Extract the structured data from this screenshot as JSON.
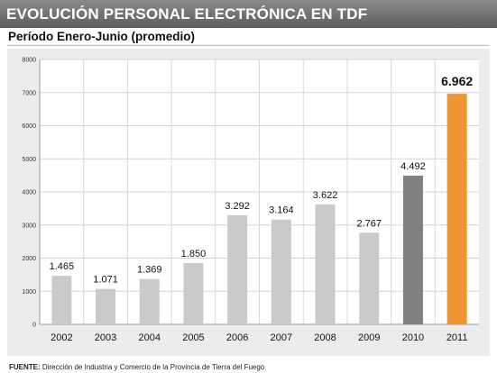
{
  "header": {
    "title": "EVOLUCIÓN PERSONAL ELECTRÓNICA EN TDF"
  },
  "subtitle": "Período Enero-Junio (promedio)",
  "footer": {
    "label": "FUENTE:",
    "text": "Dirección de Industria y Comercio de la Provincia de Tierra del Fuego"
  },
  "colors": {
    "header": "#6f6f6f",
    "bar_default": "#cbcaca",
    "bar_2010": "#808281",
    "bar_2011": "#ee9632",
    "panel": "#ececec"
  },
  "chart_data": {
    "type": "bar",
    "title": "EVOLUCIÓN PERSONAL ELECTRÓNICA EN TDF",
    "subtitle": "Período Enero-Junio (promedio)",
    "categories": [
      "2002",
      "2003",
      "2004",
      "2005",
      "2006",
      "2007",
      "2008",
      "2009",
      "2010",
      "2011"
    ],
    "values": [
      1465,
      1071,
      1369,
      1850,
      3292,
      3164,
      3622,
      2767,
      4492,
      6962
    ],
    "value_labels": [
      "1.465",
      "1.071",
      "1.369",
      "1.850",
      "3.292",
      "3.164",
      "3.622",
      "2.767",
      "4.492",
      "6.962"
    ],
    "ylim": [
      0,
      8000
    ],
    "yticks": [
      0,
      1000,
      2000,
      3000,
      4000,
      5000,
      6000,
      7000,
      8000
    ],
    "ytick_labels": [
      "0",
      "1000",
      "2000",
      "3000",
      "4000",
      "5000",
      "6000",
      "7000",
      "8000"
    ],
    "grid": true,
    "legend": false
  }
}
